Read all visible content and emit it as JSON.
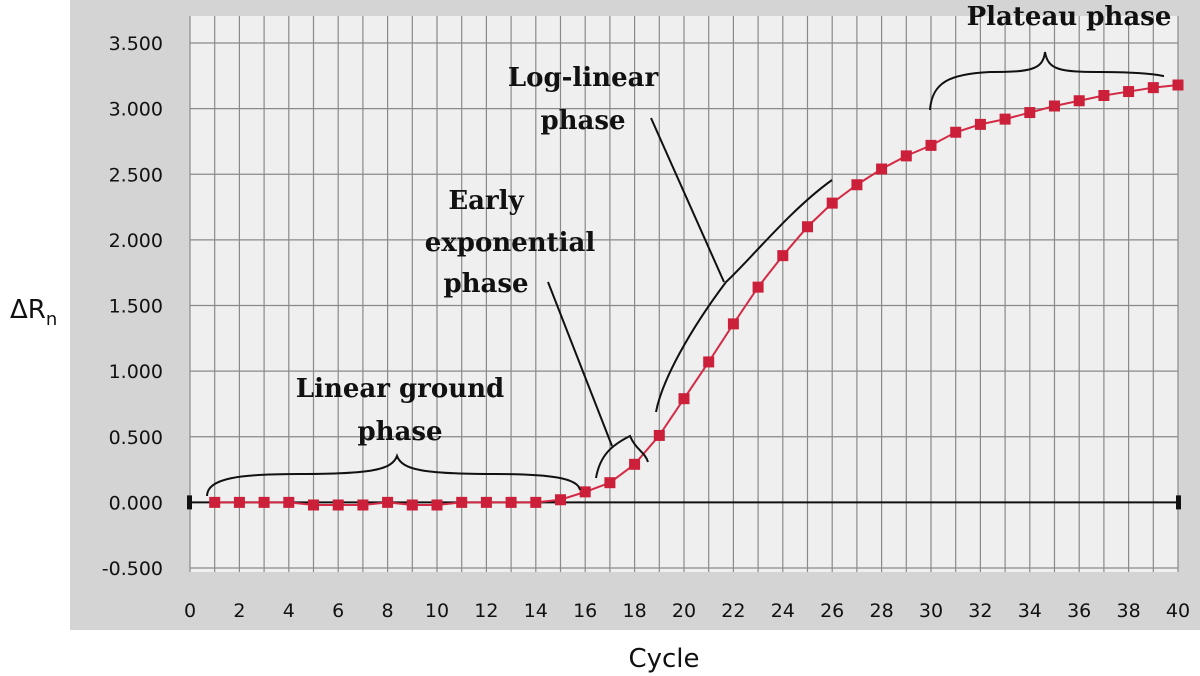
{
  "chart_data": {
    "type": "line",
    "title": "",
    "xlabel": "Cycle",
    "ylabel": "ΔR",
    "ylabel_subscript": "n",
    "xlim": [
      0,
      40
    ],
    "ylim": [
      -0.5,
      3.5
    ],
    "grid": true,
    "x_ticks": [
      "0",
      "2",
      "4",
      "6",
      "8",
      "10",
      "12",
      "14",
      "16",
      "18",
      "20",
      "22",
      "24",
      "26",
      "28",
      "30",
      "32",
      "34",
      "36",
      "38",
      "40"
    ],
    "y_ticks": [
      "3.500",
      "3.000",
      "2.500",
      "2.000",
      "1.500",
      "1.000",
      "0.500",
      "0.000",
      "-0.500"
    ],
    "series": [
      {
        "color": "#d42a45",
        "marker_color": "#cc1f3a",
        "x": [
          1,
          2,
          3,
          4,
          5,
          6,
          7,
          8,
          9,
          10,
          11,
          12,
          13,
          14,
          15,
          16,
          17,
          18,
          19,
          20,
          21,
          22,
          23,
          24,
          25,
          26,
          27,
          28,
          29,
          30,
          31,
          32,
          33,
          34,
          35,
          36,
          37,
          38,
          39,
          40
        ],
        "y": [
          0.0,
          0.0,
          0.0,
          0.0,
          -0.02,
          -0.02,
          -0.02,
          0.0,
          -0.02,
          -0.02,
          0.0,
          0.0,
          0.0,
          0.0,
          0.02,
          0.08,
          0.15,
          0.29,
          0.51,
          0.79,
          1.07,
          1.36,
          1.64,
          1.88,
          2.1,
          2.28,
          2.42,
          2.54,
          2.64,
          2.72,
          2.82,
          2.88,
          2.92,
          2.97,
          3.02,
          3.06,
          3.1,
          3.13,
          3.16,
          3.18
        ]
      }
    ],
    "annotations": [
      {
        "lines": [
          "Linear ground",
          "phase"
        ]
      },
      {
        "lines": [
          "Early",
          "exponential",
          "phase"
        ]
      },
      {
        "lines": [
          "Log-linear",
          "phase"
        ]
      },
      {
        "lines": [
          "Plateau phase"
        ]
      }
    ]
  }
}
